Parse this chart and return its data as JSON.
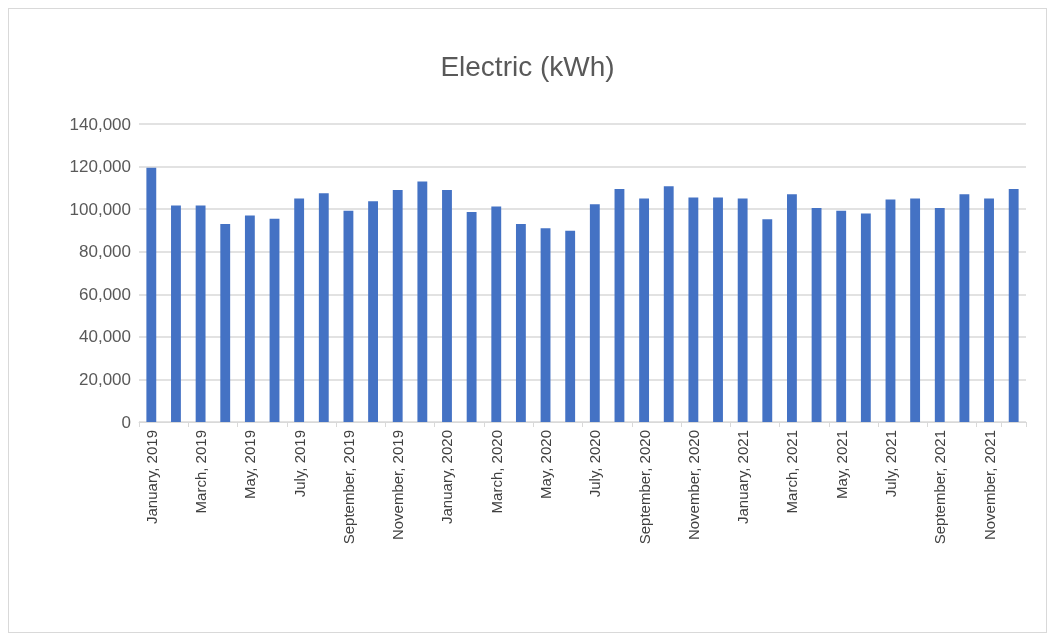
{
  "chart_data": {
    "type": "bar",
    "title": "Electric (kWh)",
    "categories": [
      "January, 2019",
      null,
      "March, 2019",
      null,
      "May, 2019",
      null,
      "July, 2019",
      null,
      "September, 2019",
      null,
      "November, 2019",
      null,
      "January, 2020",
      null,
      "March, 2020",
      null,
      "May, 2020",
      null,
      "July, 2020",
      null,
      "September, 2020",
      null,
      "November, 2020",
      null,
      "January, 2021",
      null,
      "March, 2021",
      null,
      "May, 2021",
      null,
      "July, 2021",
      null,
      "September, 2021",
      null,
      "November, 2021",
      null
    ],
    "values": [
      119500,
      101700,
      101700,
      93000,
      97000,
      95500,
      105000,
      107500,
      99200,
      103700,
      109000,
      113000,
      109000,
      98600,
      101200,
      93000,
      91000,
      89800,
      102300,
      109500,
      105000,
      110800,
      105500,
      105500,
      105000,
      95200,
      107000,
      100500,
      99200,
      98000,
      104500,
      105000,
      100500,
      107000,
      105000,
      109500
    ],
    "color": "#4472c4",
    "ylim": [
      0,
      140000
    ],
    "yticks": [
      0,
      {
        "value": 20000,
        "label": "20,000"
      },
      {
        "value": 40000,
        "label": "40,000"
      },
      {
        "value": 60000,
        "label": "60,000"
      },
      {
        "value": 80000,
        "label": "80,000"
      },
      {
        "value": 100000,
        "label": "100,000"
      },
      {
        "value": 120000,
        "label": "120,000"
      },
      {
        "value": 140000,
        "label": "140,000"
      }
    ],
    "grid": "y"
  }
}
